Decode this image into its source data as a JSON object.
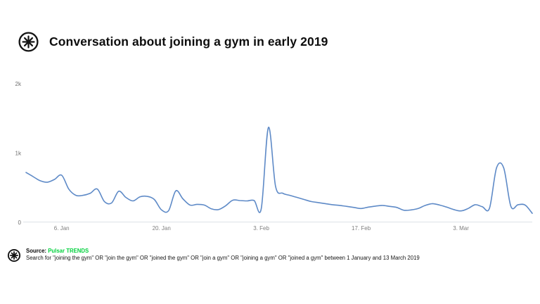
{
  "header": {
    "title": "Conversation about joining a gym in early 2019",
    "logo": "pulsar-asterisk-logo"
  },
  "colors": {
    "line": "#5e8ac7",
    "axis_line": "#dde1e7",
    "axis_text": "#6f6f6f",
    "brand_green": "#00d13c",
    "title_text": "#0d0d0d"
  },
  "chart_data": {
    "type": "line",
    "title": "Conversation about joining a gym in early 2019",
    "start_date": "1 January 2019",
    "end_date": "13 March 2019",
    "ylim": [
      0,
      2000
    ],
    "grid": false,
    "legend": "none",
    "y_ticks": [
      {
        "label": "0",
        "value": 0
      },
      {
        "label": "1k",
        "value": 1000
      },
      {
        "label": "2k",
        "value": 2000
      }
    ],
    "x_tick_labels": [
      {
        "label": "6. Jan",
        "day_index": 5
      },
      {
        "label": "20. Jan",
        "day_index": 19
      },
      {
        "label": "3. Feb",
        "day_index": 33
      },
      {
        "label": "17. Feb",
        "day_index": 47
      },
      {
        "label": "3. Mar",
        "day_index": 61
      }
    ],
    "values": [
      720,
      660,
      600,
      580,
      620,
      680,
      480,
      390,
      390,
      420,
      480,
      300,
      280,
      450,
      360,
      310,
      370,
      375,
      330,
      180,
      170,
      455,
      340,
      250,
      260,
      250,
      195,
      185,
      240,
      320,
      315,
      310,
      315,
      200,
      1370,
      520,
      420,
      390,
      360,
      330,
      300,
      285,
      270,
      255,
      245,
      230,
      215,
      200,
      220,
      235,
      245,
      230,
      215,
      175,
      180,
      200,
      245,
      270,
      250,
      220,
      185,
      165,
      200,
      255,
      225,
      205,
      790,
      785,
      230,
      255,
      250,
      130
    ]
  },
  "footer": {
    "source_label": "Source:",
    "source_name": "Pulsar TRENDS",
    "query": "Search for \"joining the gym\" OR \"join the gym\" OR \"joined the gym\" OR \"join a gym\" OR \"joining a gym\" OR \"joined a gym\" between 1 January and 13 March 2019"
  }
}
